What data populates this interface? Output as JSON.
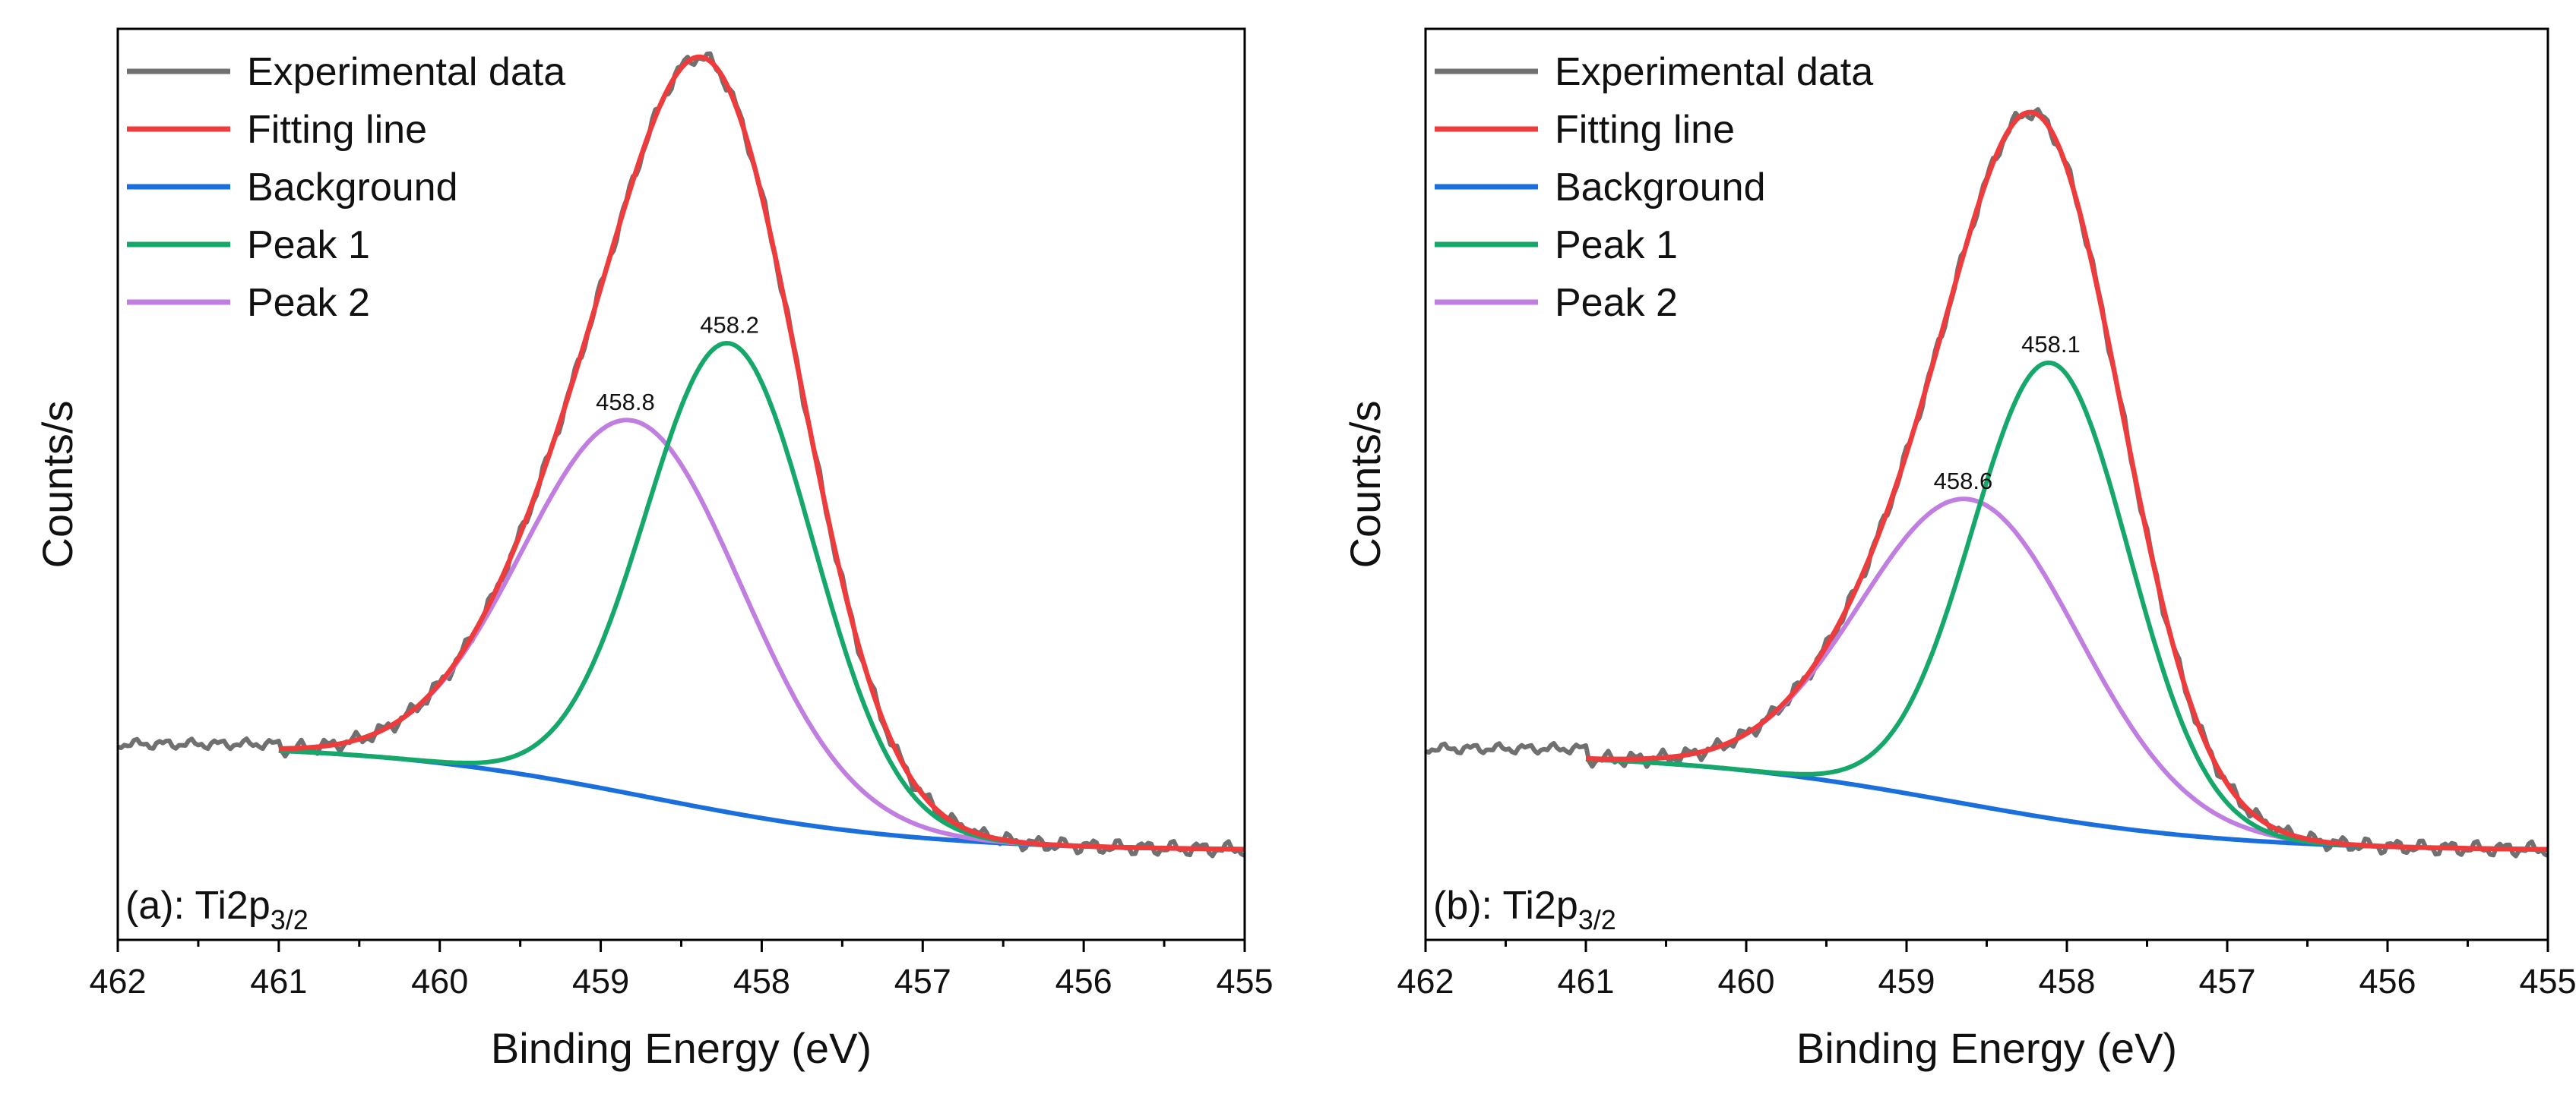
{
  "colors": {
    "experimental": "#707070",
    "fitting": "#ee3b3b",
    "background": "#1a6fdd",
    "peak1": "#16a86a",
    "peak2": "#c07ee0",
    "axis": "#000000",
    "text": "#111111"
  },
  "chart_data": [
    {
      "type": "line",
      "panel_label": "(a): Ti2p",
      "panel_label_sub": "3/2",
      "xlabel": "Binding Energy (eV)",
      "ylabel": "Counts/s",
      "xlim": [
        462,
        455
      ],
      "x_reversed": true,
      "ylim": [
        0,
        1
      ],
      "y_ticks_shown": false,
      "x_ticks": [
        "462",
        "461",
        "460",
        "459",
        "458",
        "457",
        "456",
        "455"
      ],
      "legend_position": "top-left",
      "legend": [
        "Experimental data",
        "Fitting line",
        "Background",
        "Peak 1",
        "Peak 2"
      ],
      "series": [
        {
          "name": "Background",
          "key": "background",
          "x_start": 461.0,
          "x_end": 455.0,
          "low": 0.098,
          "high": 0.215,
          "center": 458.7,
          "width": 0.85
        },
        {
          "name": "Peak 1",
          "key": "peak1",
          "x_start": 461.0,
          "x_end": 455.0,
          "center": 458.2,
          "height": 0.515,
          "fwhm": 1.22
        },
        {
          "name": "Peak 2",
          "key": "peak2",
          "x_start": 461.0,
          "x_end": 455.0,
          "center": 458.8,
          "height": 0.41,
          "fwhm": 1.6
        }
      ],
      "fitting_line": {
        "name": "Fitting line",
        "key": "fitting",
        "x_start": 461.0,
        "x_end": 455.0
      },
      "experimental": {
        "name": "Experimental data",
        "key": "experimental",
        "x_start": 462.0,
        "x_end": 455.0,
        "flat_level": 0.215,
        "fit_from": 461.0
      },
      "annotations": [
        {
          "text": "458.2",
          "x": 458.2,
          "peak": "peak1"
        },
        {
          "text": "458.8",
          "x": 458.8,
          "peak": "peak2"
        }
      ]
    },
    {
      "type": "line",
      "panel_label": "(b): Ti2p",
      "panel_label_sub": "3/2",
      "xlabel": "Binding Energy (eV)",
      "ylabel": "Counts/s",
      "xlim": [
        462,
        455
      ],
      "x_reversed": true,
      "ylim": [
        0,
        1
      ],
      "y_ticks_shown": false,
      "x_ticks": [
        "462",
        "461",
        "460",
        "459",
        "458",
        "457",
        "456",
        "455"
      ],
      "legend_position": "top-left",
      "legend": [
        "Experimental data",
        "Fitting line",
        "Background",
        "Peak 1",
        "Peak 2"
      ],
      "series": [
        {
          "name": "Background",
          "key": "background",
          "x_start": 461.0,
          "x_end": 455.0,
          "low": 0.098,
          "high": 0.205,
          "center": 458.7,
          "width": 0.85
        },
        {
          "name": "Peak 1",
          "key": "peak1",
          "x_start": 461.0,
          "x_end": 455.0,
          "center": 458.1,
          "height": 0.5,
          "fwhm": 1.15
        },
        {
          "name": "Peak 2",
          "key": "peak2",
          "x_start": 461.0,
          "x_end": 455.0,
          "center": 458.6,
          "height": 0.335,
          "fwhm": 1.6
        }
      ],
      "fitting_line": {
        "name": "Fitting line",
        "key": "fitting",
        "x_start": 461.0,
        "x_end": 455.0
      },
      "experimental": {
        "name": "Experimental data",
        "key": "experimental",
        "x_start": 462.0,
        "x_end": 455.0,
        "flat_level": 0.21,
        "fit_from": 461.0
      },
      "annotations": [
        {
          "text": "458.1",
          "x": 458.1,
          "peak": "peak1"
        },
        {
          "text": "458.6",
          "x": 458.6,
          "peak": "peak2"
        }
      ]
    }
  ]
}
